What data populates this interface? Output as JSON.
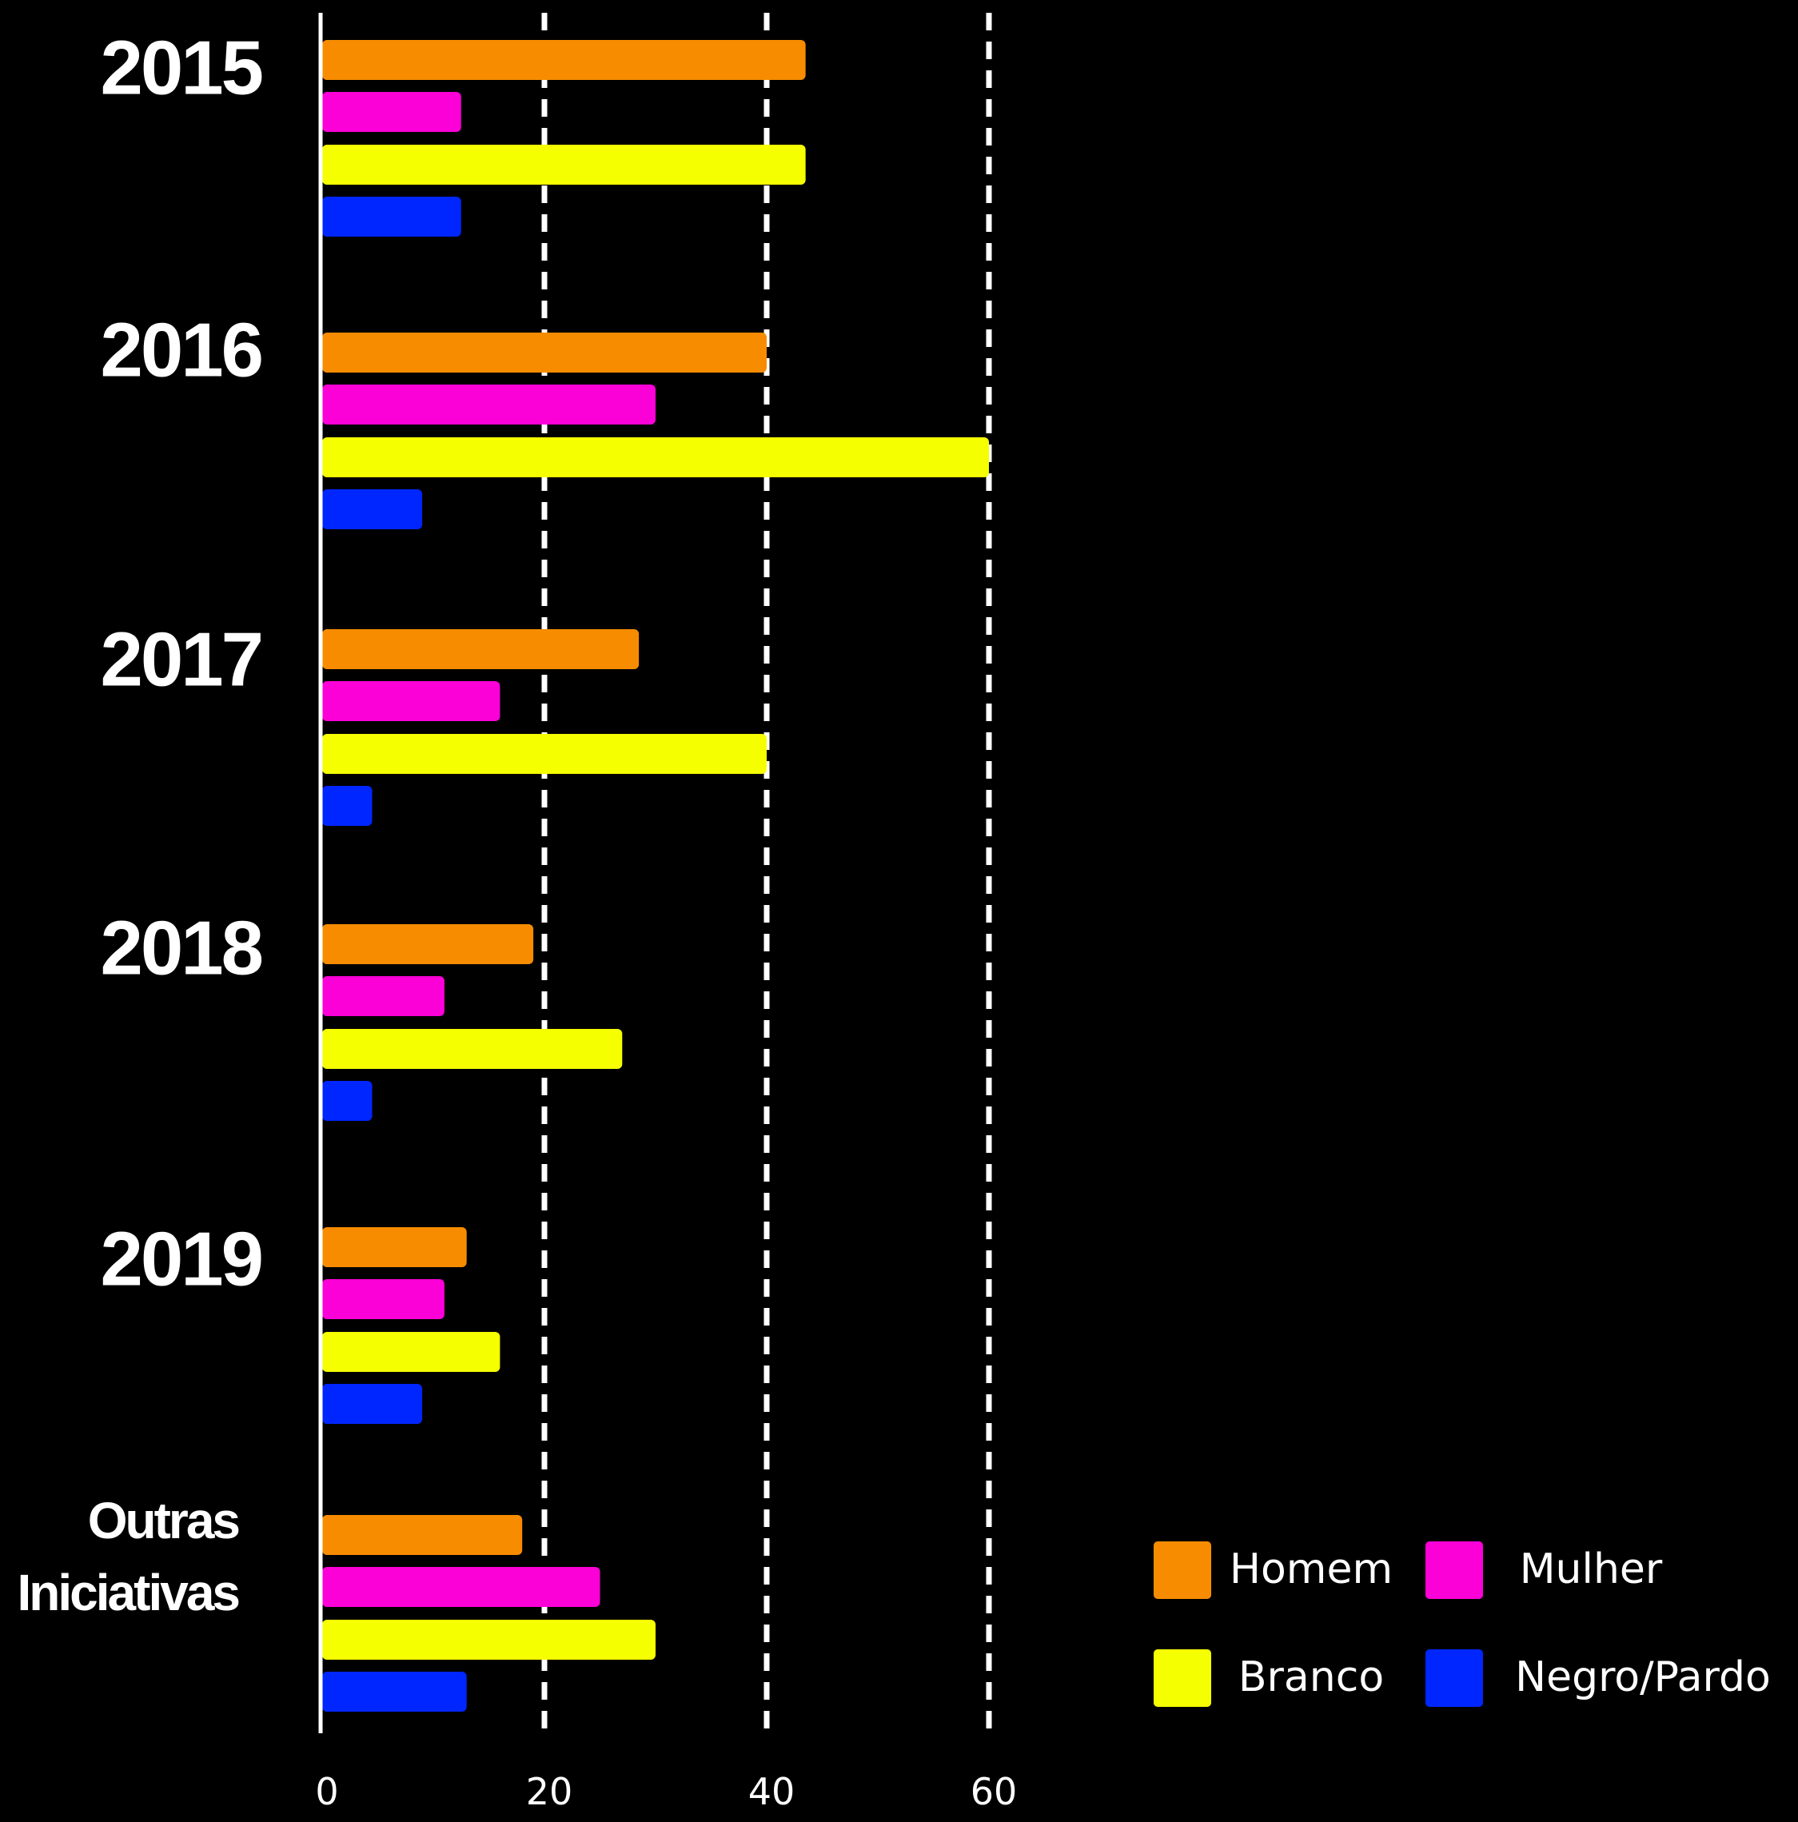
{
  "chart_data": {
    "type": "bar",
    "orientation": "horizontal",
    "categories": [
      "2015",
      "2016",
      "2017",
      "2018",
      "2019",
      "Outras Iniciativas"
    ],
    "category_lines": [
      [
        "2015"
      ],
      [
        "2016"
      ],
      [
        "2017"
      ],
      [
        "2018"
      ],
      [
        "2019"
      ],
      [
        "Outras",
        "Iniciativas"
      ]
    ],
    "series": [
      {
        "name": "Homem",
        "color": "#F78C00",
        "values": [
          43.5,
          40,
          28.5,
          19,
          13,
          18
        ]
      },
      {
        "name": "Mulher",
        "color": "#FC00D8",
        "values": [
          12.5,
          30,
          16,
          11,
          11,
          25
        ]
      },
      {
        "name": "Branco",
        "color": "#F5FF00",
        "values": [
          43.5,
          60,
          40,
          27,
          16,
          30
        ]
      },
      {
        "name": "Negro/Pardo",
        "color": "#0026FF",
        "values": [
          12.5,
          9,
          4.5,
          4.5,
          9,
          13
        ]
      }
    ],
    "xlim": [
      0,
      60
    ],
    "xticks": [
      "0",
      "20",
      "40",
      "60"
    ],
    "grid": {
      "x": true,
      "style": "dashed"
    },
    "legend_position": "bottom-right",
    "title": "",
    "xlabel": "",
    "ylabel": ""
  }
}
